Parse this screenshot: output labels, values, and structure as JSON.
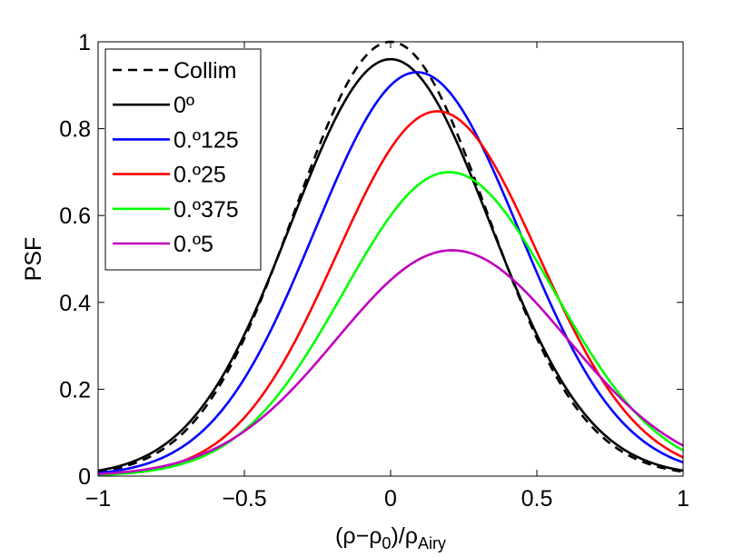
{
  "chart_data": {
    "type": "line",
    "title": "",
    "xlabel": {
      "base": "(ρ−ρ",
      "sub1": "0",
      "mid": ")/ρ",
      "sub2": "Airy"
    },
    "ylabel": "PSF",
    "xlim": [
      -1,
      1
    ],
    "ylim": [
      0,
      1
    ],
    "xticks": [
      -1,
      -0.5,
      0,
      0.5,
      1
    ],
    "xtick_labels": [
      "−1",
      "−0.5",
      "0",
      "0.5",
      "1"
    ],
    "yticks": [
      0,
      0.2,
      0.4,
      0.6,
      0.8,
      1
    ],
    "ytick_labels": [
      "0",
      "0.2",
      "0.4",
      "0.6",
      "0.8",
      "1"
    ],
    "grid": false,
    "legend_position": "top-left",
    "series": [
      {
        "name": "Collim",
        "color": "#000000",
        "dash": "dashed",
        "peak": 1.0,
        "center": 0.0,
        "sigma": 0.33
      },
      {
        "name": "0º",
        "color": "#000000",
        "dash": "solid",
        "peak": 0.96,
        "center": 0.0,
        "sigma": 0.34
      },
      {
        "name": "0.º125",
        "color": "#0000ff",
        "dash": "solid",
        "peak": 0.93,
        "center": 0.09,
        "sigma": 0.35
      },
      {
        "name": "0.º25",
        "color": "#ff0000",
        "dash": "solid",
        "peak": 0.84,
        "center": 0.16,
        "sigma": 0.345
      },
      {
        "name": "0.º375",
        "color": "#00ff00",
        "dash": "solid",
        "peak": 0.7,
        "center": 0.2,
        "sigma": 0.36
      },
      {
        "name": "0.º5",
        "color": "#bf00bf",
        "dash": "solid",
        "peak": 0.52,
        "center": 0.21,
        "sigma": 0.395
      }
    ]
  }
}
